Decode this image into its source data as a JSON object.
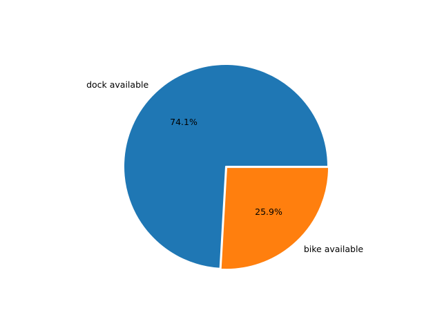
{
  "chart_data": {
    "type": "pie",
    "title": "",
    "labels": [
      "dock available",
      "bike available"
    ],
    "values": [
      74.1,
      25.9
    ],
    "percent_labels": [
      "74.1%",
      "25.9%"
    ],
    "colors": [
      "#1f77b4",
      "#ff7f0e"
    ],
    "start_angle_deg": 0,
    "direction": "counterclockwise",
    "explode": [
      0,
      0.01
    ]
  }
}
